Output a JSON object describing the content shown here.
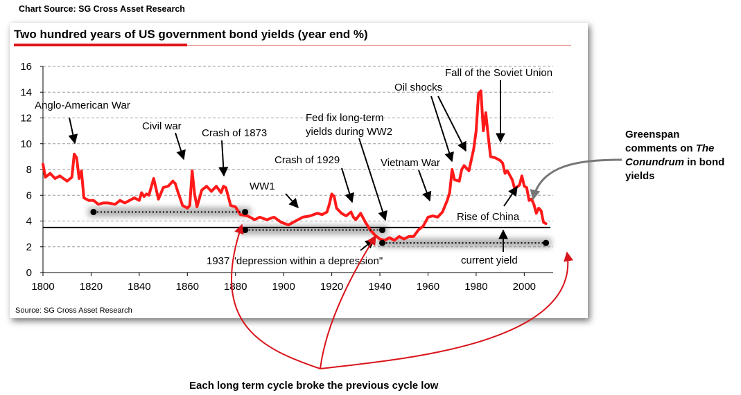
{
  "header_source": "Chart Source: SG Cross Asset Research",
  "chart_data": {
    "type": "line",
    "title": "Two hundred years of US government bond yields (year end %)",
    "source": "Source:  SG Cross Asset Research",
    "xlabel": "",
    "ylabel": "",
    "xlim": [
      1800,
      2012
    ],
    "ylim": [
      0,
      16
    ],
    "x_ticks": [
      1800,
      1820,
      1840,
      1860,
      1880,
      1900,
      1920,
      1940,
      1960,
      1980,
      2000
    ],
    "y_ticks": [
      0,
      2,
      4,
      6,
      8,
      10,
      12,
      14,
      16
    ],
    "grid": true,
    "series": [
      {
        "name": "US government bond yield",
        "color": "#ff1a1a",
        "x": [
          1800,
          1801,
          1803,
          1805,
          1807,
          1810,
          1812,
          1813,
          1814,
          1815,
          1816,
          1817,
          1819,
          1821,
          1823,
          1825,
          1827,
          1830,
          1832,
          1834,
          1836,
          1838,
          1840,
          1841,
          1842,
          1843,
          1844,
          1846,
          1848,
          1850,
          1852,
          1854,
          1855,
          1856,
          1858,
          1860,
          1861,
          1862,
          1863,
          1864,
          1866,
          1868,
          1870,
          1872,
          1874,
          1875,
          1876,
          1878,
          1880,
          1882,
          1885,
          1888,
          1890,
          1893,
          1896,
          1899,
          1902,
          1905,
          1908,
          1911,
          1914,
          1916,
          1918,
          1919,
          1920,
          1921,
          1922,
          1924,
          1926,
          1928,
          1929,
          1930,
          1932,
          1934,
          1936,
          1938,
          1940,
          1942,
          1944,
          1946,
          1948,
          1950,
          1952,
          1954,
          1956,
          1958,
          1960,
          1962,
          1964,
          1966,
          1968,
          1969,
          1970,
          1971,
          1973,
          1974,
          1975,
          1977,
          1979,
          1980,
          1981,
          1982,
          1983,
          1984,
          1985,
          1986,
          1988,
          1990,
          1991,
          1992,
          1993,
          1995,
          1996,
          1998,
          1999,
          2000,
          2001,
          2002,
          2003,
          2004,
          2005,
          2006,
          2007,
          2008,
          2009
        ],
        "values": [
          8.4,
          7.4,
          7.7,
          7.3,
          7.5,
          7.1,
          7.4,
          9.2,
          8.9,
          7.3,
          7.9,
          5.8,
          5.6,
          5.6,
          5.3,
          5.4,
          5.4,
          5.3,
          5.6,
          5.4,
          5.6,
          5.8,
          5.6,
          6.2,
          5.9,
          6.1,
          6.0,
          7.3,
          5.7,
          6.6,
          6.7,
          7.1,
          6.9,
          6.3,
          5.2,
          5.0,
          5.2,
          7.9,
          6.1,
          5.1,
          6.4,
          6.7,
          6.3,
          6.7,
          6.2,
          6.7,
          6.6,
          5.2,
          5.1,
          4.5,
          4.4,
          4.1,
          4.3,
          4.1,
          4.3,
          3.9,
          3.7,
          4.0,
          4.3,
          4.4,
          4.6,
          4.5,
          4.7,
          5.3,
          6.1,
          5.9,
          5.0,
          4.6,
          4.4,
          4.7,
          4.3,
          4.1,
          4.6,
          3.9,
          3.3,
          2.9,
          2.6,
          2.5,
          2.7,
          2.5,
          2.8,
          2.6,
          2.8,
          2.8,
          3.3,
          3.6,
          4.3,
          4.4,
          4.3,
          4.7,
          5.6,
          6.2,
          8.0,
          7.2,
          7.1,
          8.0,
          8.3,
          7.9,
          9.6,
          11.0,
          13.9,
          14.1,
          11.0,
          12.4,
          10.6,
          9.0,
          8.9,
          8.7,
          8.5,
          7.7,
          7.9,
          7.2,
          6.5,
          6.8,
          7.5,
          6.7,
          6.6,
          5.6,
          5.7,
          5.3,
          4.6,
          5.0,
          4.8,
          3.9,
          3.8
        ]
      }
    ],
    "reference_lines": [
      {
        "name": "secular-support-line",
        "y": 3.5,
        "color": "#000000"
      }
    ],
    "cycle_lows": [
      {
        "from_x": 1821,
        "to_x": 1884,
        "y": 4.7
      },
      {
        "from_x": 1884,
        "to_x": 1941,
        "y": 3.3
      },
      {
        "from_x": 1941,
        "to_x": 2009,
        "y": 2.3
      }
    ],
    "annotations": [
      "Anglo-American War",
      "Civil war",
      "Crash of 1873",
      "WW1",
      "Crash of 1929",
      "Fed fix long-term yields during WW2",
      "Vietnam War",
      "Oil shocks",
      "Fall of the Soviet Union",
      "Rise of China",
      "1937 \"depression within a depression\"",
      "current yield"
    ]
  },
  "notes": {
    "greenspan_line1": "Greenspan",
    "greenspan_line2a": "comments on ",
    "greenspan_line2b": "The",
    "greenspan_line3a": "Conundrum",
    "greenspan_line3b": " in bond",
    "greenspan_line4": "yields",
    "cycle_note": "Each long term cycle broke the previous cycle low"
  },
  "labels": {
    "anglo": "Anglo-American War",
    "civil": "Civil war",
    "crash1873": "Crash of 1873",
    "ww1": "WW1",
    "crash1929": "Crash of 1929",
    "fed1": "Fed fix long-term",
    "fed2": "yields during WW2",
    "vietnam": "Vietnam War",
    "oil": "Oil shocks",
    "soviet": "Fall of the Soviet Union",
    "china": "Rise of China",
    "depression": "1937 \"depression within a depression\"",
    "current": "current yield"
  }
}
